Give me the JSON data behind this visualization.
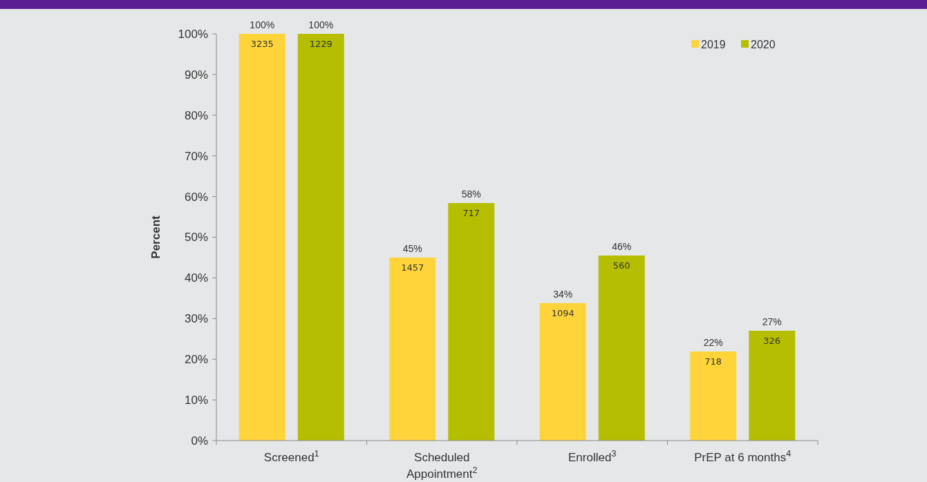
{
  "chart_data": {
    "type": "bar",
    "ylabel": "Percent",
    "categories": [
      "Screened$^{1}$",
      "Scheduled Appointment$^{2}$",
      "Enrolled$^{3}$",
      "PrEP at 6 months$^{4}$"
    ],
    "series": [
      {
        "name": "2019",
        "color": "#ffd43b",
        "values": [
          100,
          45,
          33.8,
          21.9
        ],
        "value_labels": [
          "100%",
          "45%",
          "34%",
          "22%"
        ]
      },
      {
        "name": "2020",
        "color": "#b5be00",
        "values": [
          100,
          58.4,
          45.5,
          27
        ],
        "value_labels": [
          "100%",
          "58%",
          "46%",
          "27%"
        ]
      }
    ],
    "annotations": [
      "3235",
      "1229",
      "1457",
      "717",
      "1094",
      "560",
      "718",
      "326"
    ],
    "ylim": [
      0,
      100
    ],
    "yticks": [
      {
        "value": 0,
        "label": "0%"
      },
      {
        "value": 10,
        "label": "10%"
      },
      {
        "value": 20,
        "label": "20%"
      },
      {
        "value": 30,
        "label": "30%"
      },
      {
        "value": 40,
        "label": "40%"
      },
      {
        "value": 50,
        "label": "50%"
      },
      {
        "value": 60,
        "label": "60%"
      },
      {
        "value": 70,
        "label": "70%"
      },
      {
        "value": 80,
        "label": "80%"
      },
      {
        "value": 90,
        "label": "90%"
      },
      {
        "value": 100,
        "label": "100%"
      }
    ],
    "legend": "top right",
    "grid": false
  }
}
